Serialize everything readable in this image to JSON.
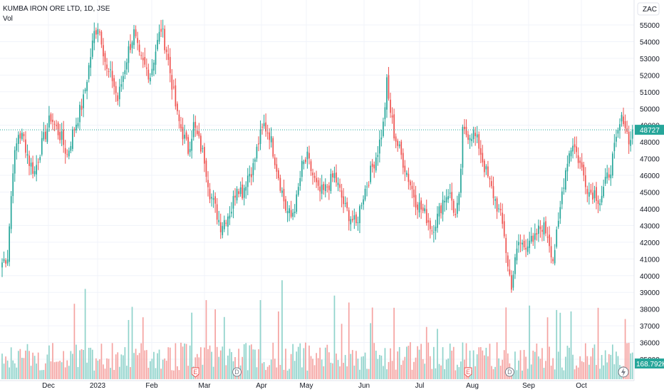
{
  "header": {
    "symbol_title": "KUMBA IRON ORE LTD, 1D, JSE",
    "volume_label": "Vol"
  },
  "price_scale": {
    "currency_label": "ZAC"
  },
  "colors": {
    "up": "#26a69a",
    "down": "#ef5350",
    "vol_up": "#8fd3cb",
    "vol_down": "#f5a3a1",
    "last_price_line": "#26a69a",
    "grid": "#f0f3fa",
    "axis_text": "#131722",
    "event_earnings": "#ef5350",
    "event_dividend": "#787b86"
  },
  "chart_data": {
    "type": "candlestick",
    "title": "KUMBA IRON ORE LTD, 1D, JSE",
    "ylim": [
      34000,
      55800
    ],
    "y_ticks": [
      35000,
      36000,
      37000,
      38000,
      39000,
      40000,
      41000,
      42000,
      43000,
      44000,
      45000,
      46000,
      47000,
      48000,
      49000,
      50000,
      51000,
      52000,
      53000,
      54000,
      55000
    ],
    "x_labels": [
      "Dec",
      "2023",
      "Feb",
      "Mar",
      "Apr",
      "May",
      "Jun",
      "Jul",
      "Aug",
      "Sep",
      "Oct"
    ],
    "last_price": 48727,
    "last_volume_label": "168.792K",
    "volume_label": "Vol",
    "price_anchors": [
      [
        0,
        40800
      ],
      [
        3,
        41200
      ],
      [
        4,
        43000
      ],
      [
        6,
        46500
      ],
      [
        9,
        48500
      ],
      [
        12,
        48200
      ],
      [
        15,
        46800
      ],
      [
        18,
        46200
      ],
      [
        21,
        47500
      ],
      [
        24,
        48500
      ],
      [
        27,
        49500
      ],
      [
        30,
        48800
      ],
      [
        33,
        48200
      ],
      [
        36,
        47200
      ],
      [
        39,
        48500
      ],
      [
        42,
        49500
      ],
      [
        45,
        50500
      ],
      [
        48,
        52500
      ],
      [
        51,
        54500
      ],
      [
        53,
        55000
      ],
      [
        55,
        54200
      ],
      [
        58,
        52200
      ],
      [
        61,
        51800
      ],
      [
        64,
        50500
      ],
      [
        67,
        52000
      ],
      [
        70,
        53500
      ],
      [
        73,
        54500
      ],
      [
        76,
        53000
      ],
      [
        79,
        52500
      ],
      [
        82,
        52000
      ],
      [
        85,
        53500
      ],
      [
        88,
        54800
      ],
      [
        91,
        53500
      ],
      [
        94,
        51500
      ],
      [
        97,
        49500
      ],
      [
        100,
        48500
      ],
      [
        103,
        47500
      ],
      [
        106,
        49000
      ],
      [
        109,
        48000
      ],
      [
        112,
        47000
      ],
      [
        115,
        45000
      ],
      [
        118,
        44000
      ],
      [
        121,
        43000
      ],
      [
        124,
        43500
      ],
      [
        127,
        44000
      ],
      [
        130,
        45500
      ],
      [
        133,
        45000
      ],
      [
        136,
        46000
      ],
      [
        139,
        46500
      ],
      [
        142,
        48000
      ],
      [
        145,
        49000
      ],
      [
        148,
        48500
      ],
      [
        151,
        47000
      ],
      [
        154,
        45500
      ],
      [
        157,
        44000
      ],
      [
        160,
        43500
      ],
      [
        163,
        44500
      ],
      [
        166,
        46500
      ],
      [
        169,
        47000
      ],
      [
        172,
        46000
      ],
      [
        175,
        45000
      ],
      [
        178,
        45000
      ],
      [
        181,
        45500
      ],
      [
        184,
        46000
      ],
      [
        187,
        45000
      ],
      [
        190,
        44000
      ],
      [
        193,
        43500
      ],
      [
        196,
        43000
      ],
      [
        199,
        44500
      ],
      [
        202,
        45500
      ],
      [
        205,
        46500
      ],
      [
        208,
        47500
      ],
      [
        211,
        49000
      ],
      [
        213,
        51500
      ],
      [
        214,
        50500
      ],
      [
        217,
        48500
      ],
      [
        220,
        47500
      ],
      [
        223,
        46500
      ],
      [
        226,
        45500
      ],
      [
        229,
        44500
      ],
      [
        232,
        44000
      ],
      [
        235,
        43500
      ],
      [
        238,
        42800
      ],
      [
        241,
        43500
      ],
      [
        244,
        44500
      ],
      [
        247,
        45000
      ],
      [
        249,
        44500
      ],
      [
        251,
        43500
      ],
      [
        253,
        44500
      ],
      [
        255,
        48500
      ],
      [
        258,
        48500
      ],
      [
        261,
        48500
      ],
      [
        264,
        47800
      ],
      [
        267,
        46500
      ],
      [
        270,
        45500
      ],
      [
        273,
        44500
      ],
      [
        276,
        43500
      ],
      [
        278,
        42500
      ],
      [
        280,
        40500
      ],
      [
        282,
        39500
      ],
      [
        284,
        40800
      ],
      [
        286,
        42000
      ],
      [
        289,
        41800
      ],
      [
        292,
        42200
      ],
      [
        294,
        41800
      ],
      [
        296,
        42500
      ],
      [
        299,
        43000
      ],
      [
        302,
        42500
      ],
      [
        305,
        41000
      ],
      [
        308,
        43000
      ],
      [
        310,
        45000
      ],
      [
        313,
        47000
      ],
      [
        316,
        48000
      ],
      [
        319,
        47000
      ],
      [
        322,
        46000
      ],
      [
        325,
        45000
      ],
      [
        328,
        45000
      ],
      [
        331,
        44500
      ],
      [
        334,
        45500
      ],
      [
        337,
        46500
      ],
      [
        340,
        48000
      ],
      [
        342,
        49000
      ],
      [
        344,
        49500
      ],
      [
        346,
        48500
      ],
      [
        348,
        48000
      ],
      [
        349,
        48727
      ]
    ],
    "events": [
      {
        "type": "earnings",
        "letter": "E",
        "index": 107
      },
      {
        "type": "dividend",
        "letter": "D",
        "index": 130
      },
      {
        "type": "earnings",
        "letter": "E",
        "index": 258
      },
      {
        "type": "dividend",
        "letter": "D",
        "index": 281
      }
    ]
  }
}
